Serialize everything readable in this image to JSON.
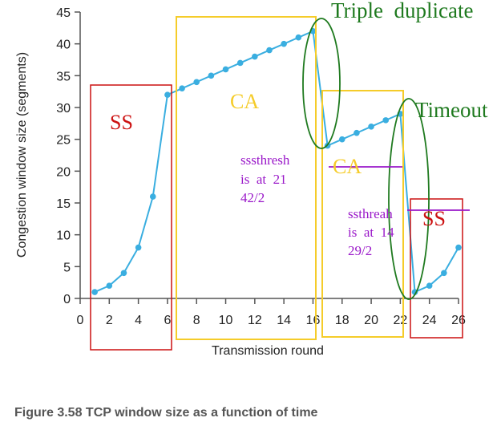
{
  "caption": "Figure 3.58 TCP window size as a function of time",
  "chart_data": {
    "type": "line",
    "xlabel": "Transmission round",
    "ylabel": "Congestion window size (segments)",
    "xlim": [
      0,
      26
    ],
    "ylim": [
      0,
      45
    ],
    "xticks": [
      0,
      2,
      4,
      6,
      8,
      10,
      12,
      14,
      16,
      18,
      20,
      22,
      24,
      26
    ],
    "yticks": [
      0,
      5,
      10,
      15,
      20,
      25,
      30,
      35,
      40,
      45
    ],
    "grid": false,
    "line_color": "#3aaee0",
    "x": [
      1,
      2,
      3,
      4,
      5,
      6,
      7,
      8,
      9,
      10,
      11,
      12,
      13,
      14,
      15,
      16,
      17,
      18,
      19,
      20,
      21,
      22,
      23,
      24,
      25,
      26
    ],
    "y": [
      1,
      2,
      4,
      8,
      16,
      32,
      33,
      34,
      35,
      36,
      37,
      38,
      39,
      40,
      41,
      42,
      24,
      25,
      26,
      27,
      28,
      29,
      1,
      2,
      4,
      8
    ]
  },
  "annotations": {
    "ss_left": "SS",
    "ca_first": "CA",
    "triple_duplicate": "Triple  duplicate",
    "ca_second": "CA",
    "timeout": "Timeout",
    "ss_right": "SS",
    "ssthresh1_line1": "sssthresh",
    "ssthresh1_line2": "is  at  21",
    "ssthresh1_line3": "42/2",
    "ssthresh2_line1": "ssthreah",
    "ssthresh2_line2": "is  at  14",
    "ssthresh2_line3": "29/2"
  },
  "colors": {
    "red": "#cc1111",
    "yellow": "#f5cc2a",
    "green": "#1f7a1f",
    "purple": "#9a18c9"
  }
}
